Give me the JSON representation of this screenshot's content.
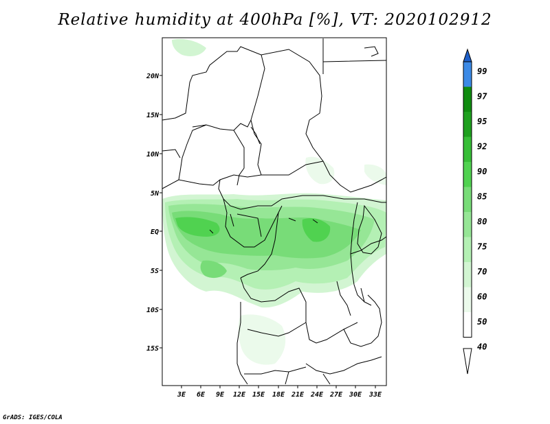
{
  "title": "Relative humidity at 400hPa [%], VT: 2020102912",
  "credit": "GrADS: IGES/COLA",
  "map": {
    "lat_labels": [
      "20N",
      "15N",
      "10N",
      "5N",
      "EQ",
      "5S",
      "10S",
      "15S"
    ],
    "lon_labels": [
      "3E",
      "6E",
      "9E",
      "12E",
      "15E",
      "18E",
      "21E",
      "24E",
      "27E",
      "30E",
      "33E"
    ]
  },
  "colorbar": {
    "levels": [
      "99",
      "97",
      "95",
      "92",
      "90",
      "85",
      "80",
      "75",
      "70",
      "60",
      "50",
      "40"
    ],
    "colors": {
      "99": "#1e5fc8",
      "97": "#3c8ae6",
      "95": "#0f8c0f",
      "92": "#1ea01e",
      "90": "#37be37",
      "85": "#50d250",
      "80": "#78dc78",
      "75": "#96e696",
      "70": "#b4f0b4",
      "60": "#d2f5d2",
      "50": "#ebfaeb",
      "40": "#ffffff"
    }
  }
}
